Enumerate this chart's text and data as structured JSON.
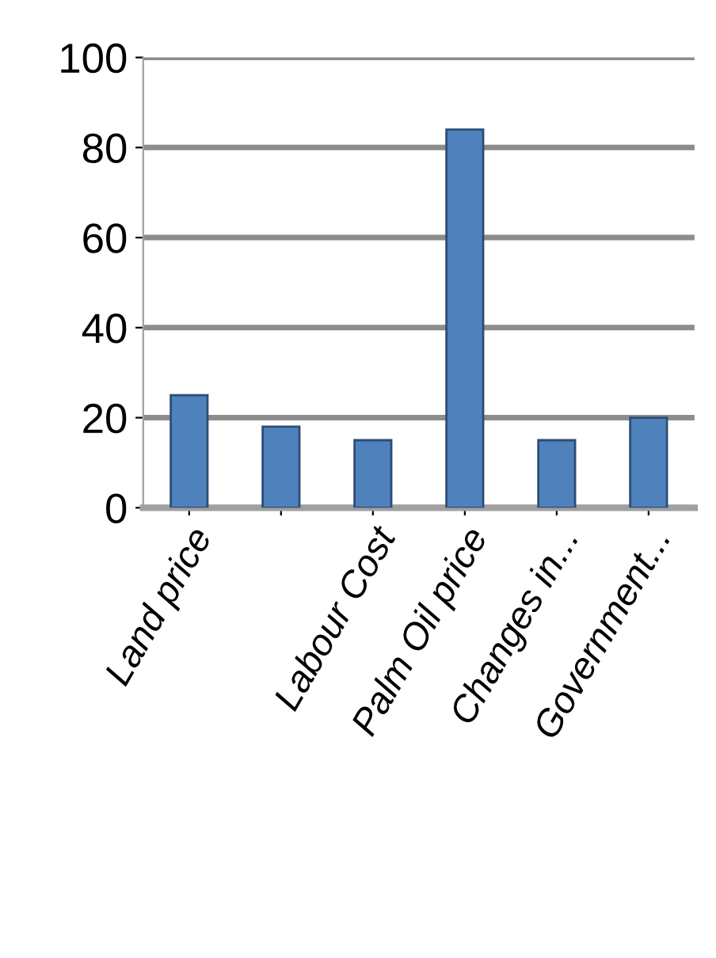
{
  "chart_data": {
    "type": "bar",
    "categories": [
      "Land price",
      null,
      "Labour Cost",
      "Palm Oil price",
      "Changes in...",
      "Government..."
    ],
    "values": [
      25,
      18,
      15,
      84,
      15,
      20
    ],
    "color": "#4f81bd",
    "ylim": [
      0,
      100
    ],
    "yticks": [
      0,
      20,
      40,
      60,
      80,
      100
    ],
    "grid": "y"
  }
}
